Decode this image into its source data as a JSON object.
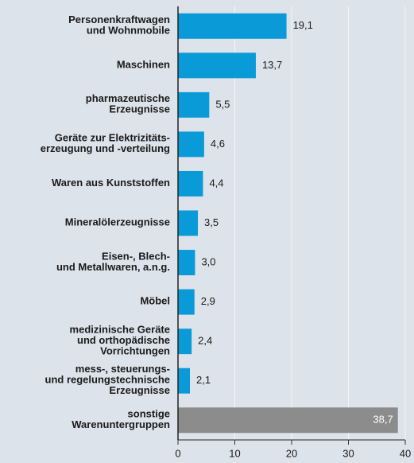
{
  "chart_data": {
    "type": "barh",
    "categories": [
      "Personenkraftwagen\nund Wohnmobile",
      "Maschinen",
      "pharmazeutische\nErzeugnisse",
      "Geräte zur Elektrizitäts-\nerzeugung und -verteilung",
      "Waren aus Kunststoffen",
      "Mineralölerzeugnisse",
      "Eisen-, Blech-\nund Metallwaren, a.n.g.",
      "Möbel",
      "medizinische Geräte\nund orthopädische\nVorrichtungen",
      "mess-, steuerungs-\nund regelungstechnische\nErzeugnisse",
      "sonstige\nWarenuntergruppen"
    ],
    "values": [
      19.1,
      13.7,
      5.5,
      4.6,
      4.4,
      3.5,
      3.0,
      2.9,
      2.4,
      2.1,
      38.7
    ],
    "value_labels": [
      "19,1",
      "13,7",
      "5,5",
      "4,6",
      "4,4",
      "3,5",
      "3,0",
      "2,9",
      "2,4",
      "2,1",
      "38,7"
    ],
    "colors": [
      "#0a9ad8",
      "#0a9ad8",
      "#0a9ad8",
      "#0a9ad8",
      "#0a9ad8",
      "#0a9ad8",
      "#0a9ad8",
      "#0a9ad8",
      "#0a9ad8",
      "#0a9ad8",
      "#8c8c8c"
    ],
    "xlim": [
      0,
      40
    ],
    "xticks": [
      0,
      10,
      20,
      30,
      40
    ],
    "grid": true
  }
}
